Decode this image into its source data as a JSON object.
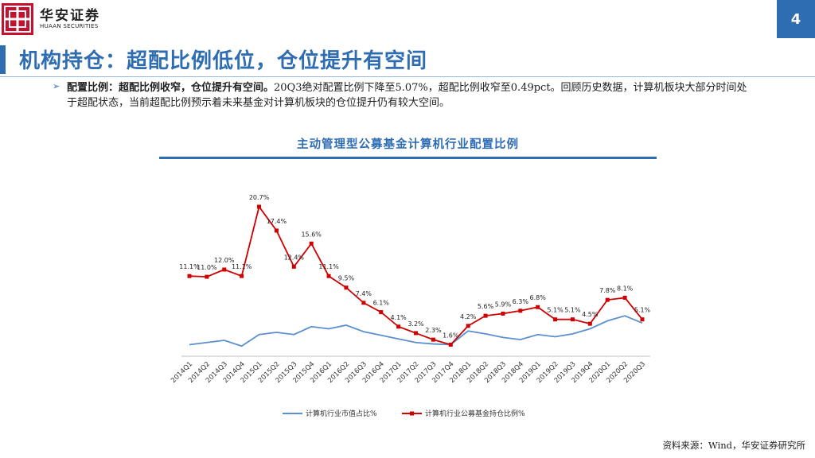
{
  "brand": {
    "name_cn": "华安证券",
    "name_en": "HUAAN SECURITIES"
  },
  "page_number": "4",
  "title": "机构持仓：超配比例低位，仓位提升有空间",
  "bullet": {
    "lead": "配置比例：超配比例收窄，仓位提升有空间。",
    "text": "20Q3绝对配置比例下降至5.07%，超配比例收窄至0.49pct。回顾历史数据，计算机板块大部分时间处于超配状态，当前超配比例预示着未来基金对计算机板块的仓位提升仍有较大空间。"
  },
  "chart_title": "主动管理型公募基金计算机行业配置比例",
  "source": "资料来源：Wind，华安证券研究所",
  "colors": {
    "accent": "#2f6db3",
    "brand_red": "#c8102e",
    "series_market": "#5b8fd0",
    "series_fund": "#d00000"
  },
  "chart_data": {
    "type": "line",
    "categories": [
      "2014Q1",
      "2014Q2",
      "2014Q3",
      "2014Q4",
      "2015Q1",
      "2015Q2",
      "2015Q3",
      "2015Q4",
      "2016Q1",
      "2016Q2",
      "2016Q3",
      "2016Q4",
      "2017Q1",
      "2017Q2",
      "2017Q3",
      "2017Q4",
      "2018Q1",
      "2018Q2",
      "2018Q3",
      "2018Q4",
      "2019Q1",
      "2019Q2",
      "2019Q3",
      "2019Q4",
      "2020Q1",
      "2020Q2",
      "2020Q3"
    ],
    "series": [
      {
        "name": "计算机行业市值占比%",
        "values": [
          1.6,
          1.9,
          2.2,
          1.4,
          3.0,
          3.3,
          3.0,
          4.1,
          3.8,
          4.3,
          3.4,
          2.9,
          2.4,
          1.9,
          1.7,
          1.6,
          3.5,
          3.1,
          2.6,
          2.3,
          3.0,
          2.7,
          3.1,
          3.8,
          4.9,
          5.6,
          4.6
        ]
      },
      {
        "name": "计算机行业公募基金持仓比例%",
        "values": [
          11.1,
          11.0,
          12.0,
          11.1,
          20.7,
          17.4,
          12.4,
          15.6,
          11.1,
          9.5,
          7.4,
          6.1,
          4.1,
          3.2,
          2.3,
          1.6,
          4.2,
          5.6,
          5.9,
          6.3,
          6.8,
          5.1,
          5.1,
          4.5,
          7.8,
          8.1,
          5.1
        ],
        "labels": [
          "11.1%",
          "11.0%",
          "12.0%",
          "11.1%",
          "20.7%",
          "17.4%",
          "12.4%",
          "15.6%",
          "11.1%",
          "9.5%",
          "7.4%",
          "6.1%",
          "4.1%",
          "3.2%",
          "2.3%",
          "1.6%",
          "4.2%",
          "5.6%",
          "5.9%",
          "6.3%",
          "6.8%",
          "5.1%",
          "5.1%",
          "4.5%",
          "7.8%",
          "8.1%",
          "5.1%"
        ]
      }
    ]
  }
}
